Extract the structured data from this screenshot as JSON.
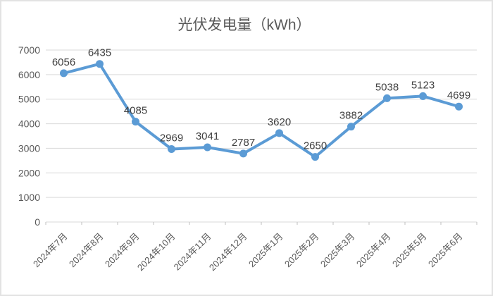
{
  "title": "光伏发电量（kWh）",
  "chart_data": {
    "type": "line",
    "title": "光伏发电量（kWh）",
    "categories": [
      "2024年7月",
      "2024年8月",
      "2024年9月",
      "2024年10月",
      "2024年11月",
      "2024年12月",
      "2025年1月",
      "2025年2月",
      "2025年3月",
      "2025年4月",
      "2025年5月",
      "2025年6月"
    ],
    "values": [
      6056,
      6435,
      4085,
      2969,
      3041,
      2787,
      3620,
      2650,
      3882,
      5038,
      5123,
      4699
    ],
    "xlabel": "",
    "ylabel": "",
    "ylim": [
      0,
      7000
    ],
    "ytick_step": 1000,
    "grid": true,
    "legend": "none",
    "data_labels": "above-points",
    "x_label_rotation_deg": 45
  },
  "colors": {
    "line": "#5B9BD5",
    "marker": "#5B9BD5",
    "gridline": "#D9D9D9",
    "axis_line": "#D9D9D9",
    "tick_mark": "#BFBFBF",
    "axis_text": "#595959",
    "data_label_text": "#404040",
    "title_text": "#595959",
    "frame_border": "#E2E2E2",
    "background": "#FFFFFF"
  }
}
